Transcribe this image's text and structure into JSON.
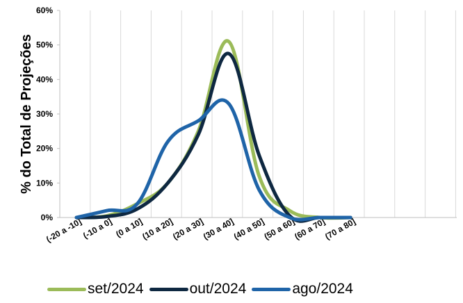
{
  "chart_data": {
    "type": "line",
    "title": "",
    "xlabel": "",
    "ylabel": "% do Total de Projeções",
    "ylim": [
      0,
      60
    ],
    "yticks": [
      "0%",
      "10%",
      "20%",
      "30%",
      "40%",
      "50%",
      "60%"
    ],
    "categories": [
      "(-20 a -10]",
      "(-10 a 0]",
      "(0 a 10]",
      "(10 a 20]",
      "(20 a 30]",
      "(30 a 40]",
      "(40 a 50]",
      "(50 a 60]",
      "(60 a 70]",
      "(70 a 80]"
    ],
    "grid": "vertical",
    "legend": "bottom",
    "series": [
      {
        "name": "set/2024",
        "color": "#9BBB59",
        "values": [
          0,
          0.5,
          4,
          10,
          25,
          51,
          12,
          2,
          0,
          0
        ]
      },
      {
        "name": "out/2024",
        "color": "#0E2841",
        "values": [
          0,
          0.3,
          2.5,
          10,
          24,
          47.5,
          18,
          0.5,
          0,
          0
        ]
      },
      {
        "name": "ago/2024",
        "color": "#1F64A8",
        "values": [
          0,
          2,
          4,
          22,
          28,
          33,
          8,
          0,
          0,
          0
        ]
      }
    ]
  }
}
